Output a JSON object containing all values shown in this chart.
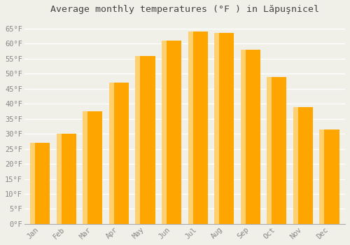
{
  "title": "Average monthly temperatures (°F ) in Lăpuşnicel",
  "months": [
    "Jan",
    "Feb",
    "Mar",
    "Apr",
    "May",
    "Jun",
    "Jul",
    "Aug",
    "Sep",
    "Oct",
    "Nov",
    "Dec"
  ],
  "values": [
    27,
    30,
    37.5,
    47,
    56,
    61,
    64,
    63.5,
    58,
    49,
    39,
    31.5
  ],
  "bar_color_light": "#FFD070",
  "bar_color_main": "#FFA500",
  "background_color": "#F0EFE8",
  "grid_color": "#FFFFFF",
  "tick_label_color": "#888888",
  "title_color": "#444444",
  "ylim": [
    0,
    68
  ],
  "yticks": [
    0,
    5,
    10,
    15,
    20,
    25,
    30,
    35,
    40,
    45,
    50,
    55,
    60,
    65
  ],
  "ytick_labels": [
    "0°F",
    "5°F",
    "10°F",
    "15°F",
    "20°F",
    "25°F",
    "30°F",
    "35°F",
    "40°F",
    "45°F",
    "50°F",
    "55°F",
    "60°F",
    "65°F"
  ],
  "title_fontsize": 9.5,
  "tick_fontsize": 7.5,
  "figsize": [
    5.0,
    3.5
  ],
  "dpi": 100
}
